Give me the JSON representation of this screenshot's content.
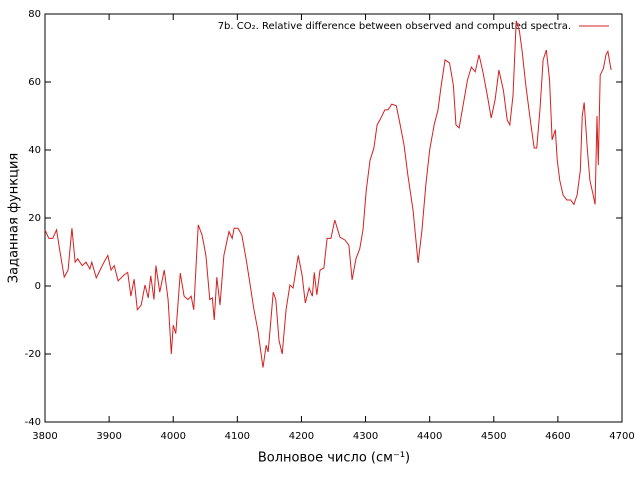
{
  "chart_data": {
    "type": "line",
    "xlabel": "Волновое число (см⁻¹)",
    "ylabel": "Заданная функция",
    "x": [
      3800,
      3806,
      3812,
      3818,
      3823,
      3830,
      3836,
      3842,
      3847,
      3851,
      3858,
      3864,
      3870,
      3873,
      3880,
      3886,
      3892,
      3898,
      3903,
      3908,
      3914,
      3923,
      3929,
      3934,
      3939,
      3944,
      3950,
      3956,
      3961,
      3965,
      3970,
      3973,
      3979,
      3986,
      3992,
      3997,
      4000,
      4004,
      4011,
      4017,
      4023,
      4028,
      4032,
      4039,
      4045,
      4051,
      4057,
      4061,
      4064,
      4068,
      4073,
      4079,
      4087,
      4092,
      4095,
      4101,
      4107,
      4114,
      4120,
      4126,
      4132,
      4140,
      4145,
      4148,
      4151,
      4156,
      4160,
      4165,
      4170,
      4176,
      4182,
      4187,
      4195,
      4201,
      4206,
      4212,
      4217,
      4220,
      4224,
      4229,
      4235,
      4240,
      4246,
      4252,
      4260,
      4268,
      4274,
      4279,
      4285,
      4291,
      4296,
      4301,
      4307,
      4313,
      4318,
      4324,
      4330,
      4335,
      4341,
      4348,
      4354,
      4360,
      4366,
      4374,
      4382,
      4388,
      4394,
      4400,
      4407,
      4413,
      4418,
      4424,
      4431,
      4437,
      4441,
      4446,
      4452,
      4459,
      4465,
      4471,
      4477,
      4483,
      4490,
      4496,
      4502,
      4508,
      4515,
      4521,
      4525,
      4530,
      4535,
      4540,
      4544,
      4550,
      4557,
      4563,
      4567,
      4572,
      4577,
      4582,
      4587,
      4591,
      4596,
      4599,
      4603,
      4608,
      4614,
      4620,
      4625,
      4630,
      4635,
      4638,
      4641,
      4646,
      4650,
      4655,
      4658,
      4661,
      4663,
      4666,
      4671,
      4675,
      4678,
      4683
    ],
    "series": [
      {
        "name": "7b. CO₂. Relative difference between observed and computed spectra.",
        "color": "#d62020",
        "values": [
          16.5,
          14,
          14,
          16.5,
          10.5,
          2.6,
          4.7,
          17,
          7,
          8,
          6,
          7,
          5,
          7,
          2.4,
          4.7,
          7,
          9,
          4.7,
          6,
          1.5,
          3.2,
          4,
          -3,
          2,
          -7,
          -5.6,
          0.3,
          -3.5,
          3,
          -4,
          6,
          -1.8,
          4.7,
          -4,
          -20,
          -11.5,
          -14,
          3.8,
          -3,
          -4,
          -3,
          -7,
          18,
          15,
          9,
          -4,
          -3.5,
          -10,
          2.6,
          -5.6,
          9,
          16,
          14,
          17,
          17,
          15,
          7.6,
          0.3,
          -7,
          -13,
          -24,
          -17.4,
          -19.4,
          -13,
          -1.8,
          -4,
          -16,
          -20,
          -7,
          0.3,
          -0.6,
          9,
          3.2,
          -5,
          -0.6,
          -3,
          4,
          -2.6,
          4.7,
          5.3,
          14,
          14,
          19.4,
          14.4,
          13.5,
          12,
          1.8,
          8,
          11,
          16.5,
          28,
          37,
          40.6,
          47.4,
          49.4,
          51.8,
          51.8,
          53.5,
          53,
          47.4,
          41.5,
          32.6,
          22.4,
          6.8,
          16.5,
          29.7,
          40,
          47.4,
          51.8,
          59,
          66.5,
          65.6,
          59,
          47.4,
          46.5,
          53,
          60.6,
          64.4,
          63,
          68,
          63,
          56,
          49.4,
          54.7,
          63.5,
          57.6,
          48.8,
          47.4,
          56,
          78,
          75,
          69.4,
          59,
          48.8,
          40.6,
          40.6,
          51.8,
          66.5,
          69.4,
          60.6,
          43,
          46,
          37,
          31,
          26.8,
          25.3,
          25.3,
          24,
          26.8,
          34,
          50,
          54,
          40,
          31,
          26.8,
          24,
          50,
          35.6,
          62,
          64,
          68,
          69,
          63.5
        ]
      }
    ],
    "xlim": [
      3800,
      4700
    ],
    "xticks": [
      3800,
      3900,
      4000,
      4100,
      4200,
      4300,
      4400,
      4500,
      4600,
      4700
    ],
    "ylim": [
      -40,
      80
    ],
    "yticks": [
      -40,
      -20,
      0,
      20,
      40,
      60,
      80
    ],
    "grid": false,
    "legend": "top-right"
  }
}
